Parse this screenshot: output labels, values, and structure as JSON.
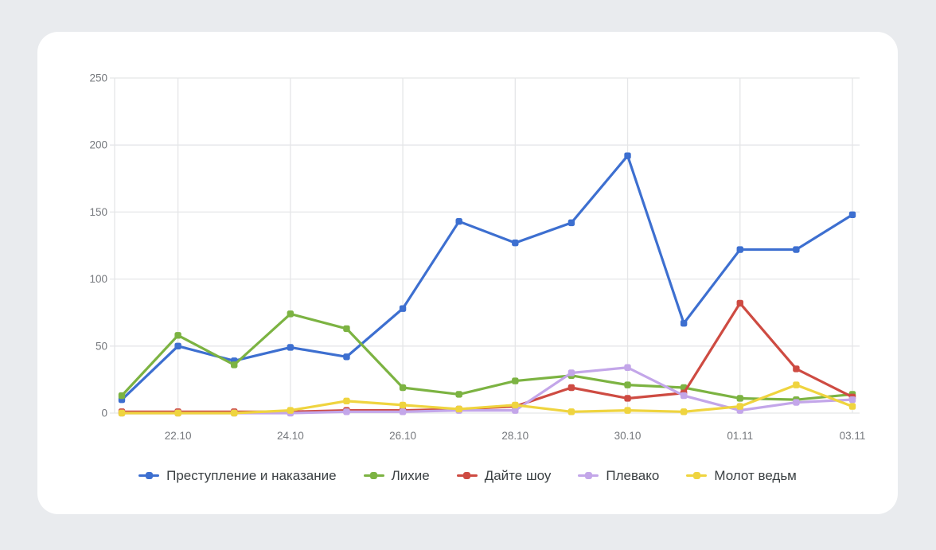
{
  "page": {
    "background": "#e9ebee",
    "card_background": "#ffffff",
    "grid_color": "#e5e6e8",
    "axis_label_color": "#75787d"
  },
  "chart_data": {
    "type": "line",
    "x": [
      "21.10",
      "22.10",
      "23.10",
      "24.10",
      "25.10",
      "26.10",
      "27.10",
      "28.10",
      "29.10",
      "30.10",
      "31.10",
      "01.11",
      "02.11",
      "03.11"
    ],
    "xticks_shown": [
      "22.10",
      "24.10",
      "26.10",
      "28.10",
      "30.10",
      "01.11",
      "03.11"
    ],
    "yticks": [
      0,
      50,
      100,
      150,
      200,
      250
    ],
    "ylim": [
      0,
      250
    ],
    "grid": true,
    "legend_position": "bottom",
    "title": "",
    "xlabel": "",
    "ylabel": "",
    "series": [
      {
        "name": "Преступление и наказание",
        "color": "#3d6fd0",
        "values": [
          10,
          50,
          39,
          49,
          42,
          78,
          143,
          127,
          142,
          192,
          67,
          122,
          122,
          148
        ]
      },
      {
        "name": "Лихие",
        "color": "#7cb342",
        "values": [
          13,
          58,
          36,
          74,
          63,
          19,
          14,
          24,
          28,
          21,
          19,
          11,
          10,
          14
        ]
      },
      {
        "name": "Дайте шоу",
        "color": "#ce4b42",
        "values": [
          1,
          1,
          1,
          1,
          2,
          2,
          3,
          5,
          19,
          11,
          15,
          82,
          33,
          12
        ]
      },
      {
        "name": "Плевако",
        "color": "#c3a6e9",
        "values": [
          0,
          0,
          0,
          0,
          1,
          1,
          2,
          2,
          30,
          34,
          13,
          2,
          8,
          10
        ]
      },
      {
        "name": "Молот ведьм",
        "color": "#efd43f",
        "values": [
          0,
          0,
          0,
          2,
          9,
          6,
          3,
          6,
          1,
          2,
          1,
          5,
          21,
          5
        ]
      }
    ]
  }
}
